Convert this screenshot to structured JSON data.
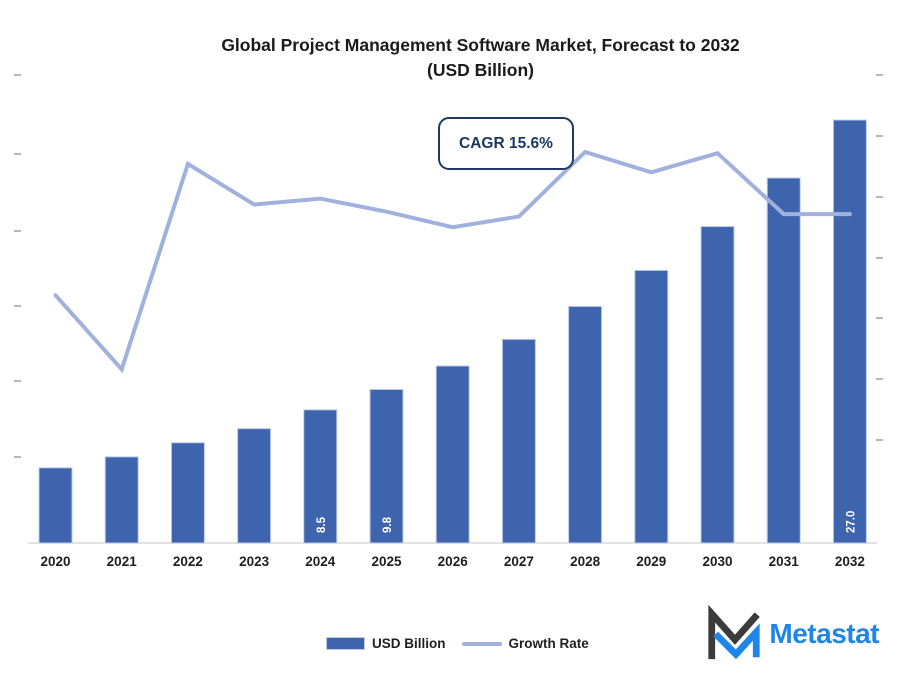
{
  "title": {
    "line1": "Global Project Management Software Market, Forecast to 2032",
    "line2": "(USD Billion)"
  },
  "annotation": {
    "cagr_label": "CAGR 15.6%"
  },
  "legend": [
    {
      "label": "USD Billion",
      "swatch": "bar"
    },
    {
      "label": "Growth Rate",
      "swatch": "line"
    }
  ],
  "logo": {
    "text": "Metastat",
    "icon": "double-M-monogram"
  },
  "colors": {
    "bar": "#3D64AC",
    "bar_border": "#BFCDEA",
    "bar_label": "#FFFFFF",
    "line": "#9FB1DC",
    "callout_border": "#1F3864",
    "callout_text": "#17375E",
    "axis_line": "#D9D9D9",
    "tick": "#A9AFBC",
    "text": "#1F1F1F",
    "logo_blue": "#1D86E8",
    "logo_dark": "#3B3B3B"
  },
  "chart_data": {
    "type": "bar",
    "subtype": "combo-bar-line-dual-axis",
    "title": "Global Project Management Software Market, Forecast to 2032 (USD Billion)",
    "categories": [
      "2020",
      "2021",
      "2022",
      "2023",
      "2024",
      "2025",
      "2026",
      "2027",
      "2028",
      "2029",
      "2030",
      "2031",
      "2032"
    ],
    "series": [
      {
        "name": "USD Billion",
        "type": "bar",
        "axis": "left",
        "values": [
          4.8,
          5.5,
          6.4,
          7.3,
          8.5,
          9.8,
          11.3,
          13.0,
          15.1,
          17.4,
          20.2,
          23.3,
          27.0
        ],
        "shown_data_labels": [
          "",
          "",
          "",
          "",
          "8.5",
          "9.8",
          "",
          "",
          "",
          "",
          "",
          "",
          "27.0"
        ]
      },
      {
        "name": "Growth Rate",
        "type": "line",
        "axis": "right",
        "values_pct_estimated": [
          14.9,
          14.28,
          16.0,
          15.66,
          15.71,
          15.6,
          15.47,
          15.56,
          16.1,
          15.93,
          16.09,
          15.58,
          15.58
        ]
      }
    ],
    "annotations": [
      "CAGR 15.6%"
    ],
    "xlabel": "",
    "ylabel": "",
    "axes": {
      "left": {
        "tick_count": 6,
        "labels_visible": false,
        "ylim_estimated": [
          0,
          30
        ]
      },
      "right": {
        "tick_count": 7,
        "labels_visible": false
      }
    },
    "grid": false,
    "legend_position": "bottom"
  }
}
